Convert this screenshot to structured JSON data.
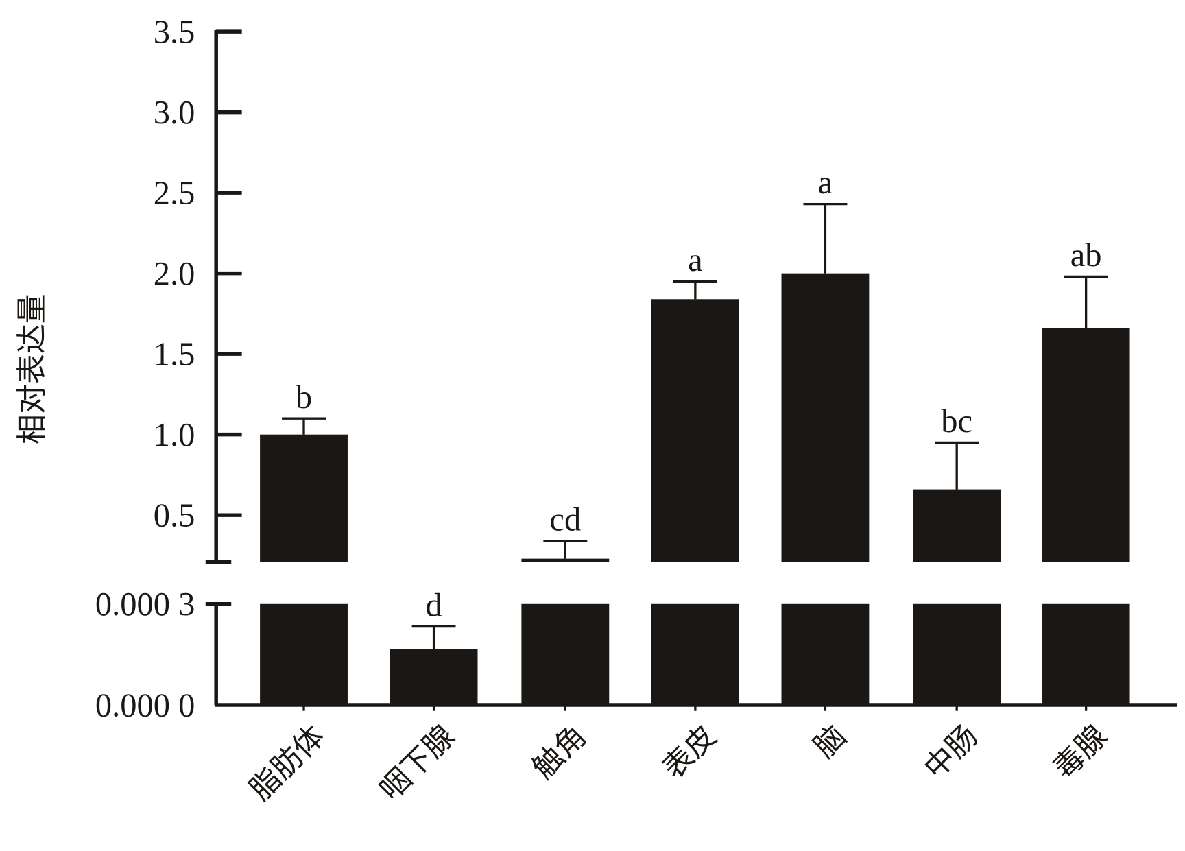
{
  "chart_data": {
    "type": "bar",
    "title": "",
    "xlabel": "",
    "ylabel": "相对表达量",
    "broken_axis": true,
    "upper_segment": {
      "ylim": [
        0.21,
        3.5
      ],
      "ticks": [
        0.5,
        1.0,
        1.5,
        2.0,
        2.5,
        3.0,
        3.5
      ],
      "tick_labels": [
        "0.5",
        "1.0",
        "1.5",
        "2.0",
        "2.5",
        "3.0",
        "3.5"
      ]
    },
    "lower_segment": {
      "ylim": [
        0,
        0.0003
      ],
      "ticks": [
        0,
        0.0003
      ],
      "tick_labels": [
        "0.000 0",
        "0.000 3"
      ]
    },
    "categories": [
      "脂肪体",
      "咽下腺",
      "触角",
      "表皮",
      "脑",
      "中肠",
      "毒腺"
    ],
    "values": [
      1.0,
      0.000166,
      0.23,
      1.84,
      2.0,
      0.66,
      1.66
    ],
    "error_upper": [
      1.1,
      0.000233,
      0.34,
      1.95,
      2.43,
      0.95,
      1.98
    ],
    "significance_letters": [
      "b",
      "d",
      "cd",
      "a",
      "a",
      "bc",
      "ab"
    ],
    "bar_color": "#1a1714",
    "grid": false,
    "legend": "none"
  }
}
